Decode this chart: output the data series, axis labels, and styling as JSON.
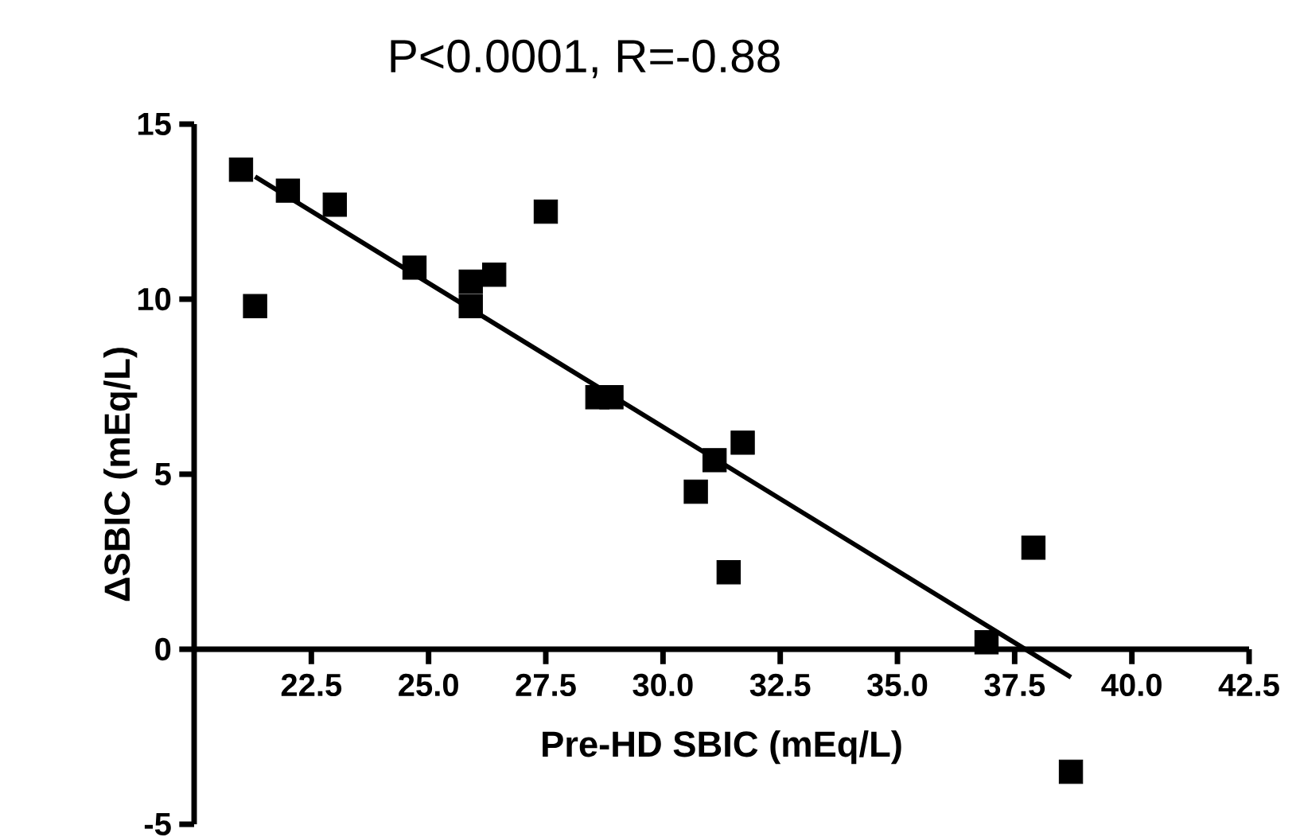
{
  "chart_data": {
    "type": "scatter",
    "title": "P<0.0001, R=-0.88",
    "xlabel": "Pre-HD SBIC (mEq/L)",
    "ylabel": "ΔSBIC (mEq/L)",
    "xlim": [
      20,
      42.5
    ],
    "ylim": [
      -5,
      15
    ],
    "xticks": [
      {
        "value": 22.5,
        "label": "22.5"
      },
      {
        "value": 25,
        "label": "25.0"
      },
      {
        "value": 27.5,
        "label": "27.5"
      },
      {
        "value": 30,
        "label": "30.0"
      },
      {
        "value": 32.5,
        "label": "32.5"
      },
      {
        "value": 35,
        "label": "35.0"
      },
      {
        "value": 37.5,
        "label": "37.5"
      },
      {
        "value": 40,
        "label": "40.0"
      },
      {
        "value": 42.5,
        "label": "42.5"
      }
    ],
    "yticks": [
      -5,
      0,
      5,
      10,
      15
    ],
    "grid": false,
    "marker": "square",
    "series": [
      {
        "color": "#000000",
        "x": [
          21.0,
          21.3,
          22.0,
          23.0,
          24.7,
          25.9,
          25.9,
          26.4,
          27.5,
          28.6,
          28.9,
          30.7,
          31.1,
          31.4,
          31.7,
          36.9,
          37.9,
          38.7
        ],
        "values": [
          13.7,
          9.8,
          13.1,
          12.7,
          10.9,
          10.5,
          9.8,
          10.7,
          12.5,
          7.2,
          7.2,
          4.5,
          5.4,
          2.2,
          5.9,
          0.2,
          2.9,
          -3.5
        ]
      },
      {
        "type": "line",
        "color": "#000000",
        "marker": "none",
        "x": [
          21.3,
          38.7
        ],
        "values": [
          13.5,
          -0.8
        ]
      }
    ]
  }
}
